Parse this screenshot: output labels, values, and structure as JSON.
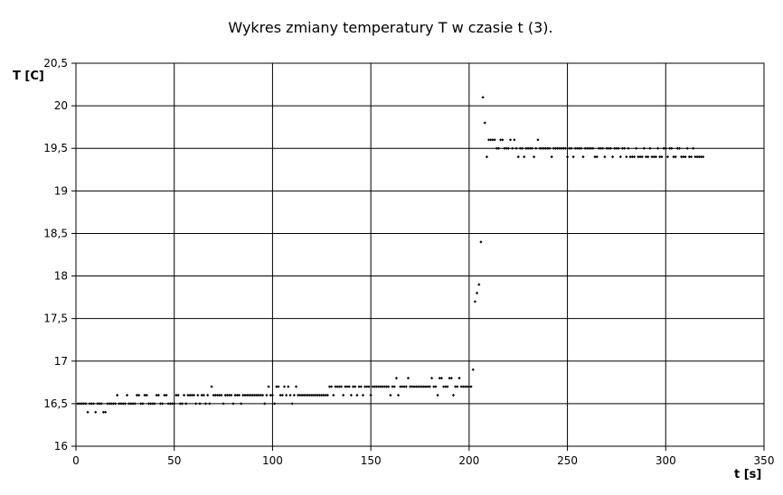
{
  "chart_data": {
    "type": "scatter",
    "title": "Wykres zmiany temperatury T w czasie t (3).",
    "xlabel": "t [s]",
    "ylabel": "T [C]",
    "xlim": [
      0,
      350
    ],
    "ylim": [
      16,
      20.5
    ],
    "x_ticks": [
      0,
      50,
      100,
      150,
      200,
      250,
      300,
      350
    ],
    "x_tick_labels": [
      "0",
      "50",
      "100",
      "150",
      "200",
      "250",
      "300",
      "350"
    ],
    "y_ticks": [
      16,
      16.5,
      17,
      17.5,
      18,
      18.5,
      19,
      19.5,
      20,
      20.5
    ],
    "y_tick_labels": [
      "16",
      "16,5",
      "17",
      "17,5",
      "18",
      "18,5",
      "19",
      "19,5",
      "20",
      "20,5"
    ],
    "grid": true,
    "series": [
      {
        "points": [
          [
            1,
            16.5
          ],
          [
            2,
            16.5
          ],
          [
            3,
            16.5
          ],
          [
            4,
            16.5
          ],
          [
            5,
            16.5
          ],
          [
            6,
            16.4
          ],
          [
            7,
            16.5
          ],
          [
            8,
            16.5
          ],
          [
            9,
            16.5
          ],
          [
            10,
            16.4
          ],
          [
            11,
            16.5
          ],
          [
            12,
            16.5
          ],
          [
            13,
            16.5
          ],
          [
            14,
            16.4
          ],
          [
            15,
            16.4
          ],
          [
            16,
            16.5
          ],
          [
            17,
            16.5
          ],
          [
            18,
            16.5
          ],
          [
            19,
            16.5
          ],
          [
            20,
            16.5
          ],
          [
            21,
            16.6
          ],
          [
            22,
            16.5
          ],
          [
            23,
            16.5
          ],
          [
            24,
            16.5
          ],
          [
            25,
            16.5
          ],
          [
            26,
            16.6
          ],
          [
            27,
            16.5
          ],
          [
            28,
            16.5
          ],
          [
            29,
            16.5
          ],
          [
            30,
            16.5
          ],
          [
            31,
            16.6
          ],
          [
            32,
            16.6
          ],
          [
            33,
            16.5
          ],
          [
            34,
            16.5
          ],
          [
            35,
            16.6
          ],
          [
            36,
            16.6
          ],
          [
            37,
            16.5
          ],
          [
            38,
            16.5
          ],
          [
            39,
            16.5
          ],
          [
            40,
            16.5
          ],
          [
            41,
            16.6
          ],
          [
            42,
            16.6
          ],
          [
            43,
            16.5
          ],
          [
            44,
            16.5
          ],
          [
            45,
            16.6
          ],
          [
            46,
            16.6
          ],
          [
            47,
            16.5
          ],
          [
            48,
            16.5
          ],
          [
            49,
            16.5
          ],
          [
            50,
            16.5
          ],
          [
            51,
            16.6
          ],
          [
            52,
            16.6
          ],
          [
            53,
            16.5
          ],
          [
            54,
            16.5
          ],
          [
            55,
            16.6
          ],
          [
            56,
            16.5
          ],
          [
            57,
            16.6
          ],
          [
            58,
            16.6
          ],
          [
            59,
            16.6
          ],
          [
            60,
            16.6
          ],
          [
            61,
            16.5
          ],
          [
            62,
            16.6
          ],
          [
            63,
            16.5
          ],
          [
            64,
            16.6
          ],
          [
            65,
            16.6
          ],
          [
            66,
            16.5
          ],
          [
            67,
            16.6
          ],
          [
            68,
            16.5
          ],
          [
            69,
            16.7
          ],
          [
            70,
            16.6
          ],
          [
            71,
            16.6
          ],
          [
            72,
            16.6
          ],
          [
            73,
            16.6
          ],
          [
            74,
            16.6
          ],
          [
            75,
            16.5
          ],
          [
            76,
            16.6
          ],
          [
            77,
            16.6
          ],
          [
            78,
            16.6
          ],
          [
            79,
            16.6
          ],
          [
            80,
            16.5
          ],
          [
            81,
            16.6
          ],
          [
            82,
            16.6
          ],
          [
            83,
            16.6
          ],
          [
            84,
            16.5
          ],
          [
            85,
            16.6
          ],
          [
            86,
            16.6
          ],
          [
            87,
            16.6
          ],
          [
            88,
            16.6
          ],
          [
            89,
            16.6
          ],
          [
            90,
            16.6
          ],
          [
            91,
            16.6
          ],
          [
            92,
            16.6
          ],
          [
            93,
            16.6
          ],
          [
            94,
            16.6
          ],
          [
            95,
            16.6
          ],
          [
            96,
            16.5
          ],
          [
            97,
            16.6
          ],
          [
            98,
            16.7
          ],
          [
            99,
            16.6
          ],
          [
            100,
            16.6
          ],
          [
            101,
            16.5
          ],
          [
            102,
            16.7
          ],
          [
            103,
            16.7
          ],
          [
            104,
            16.6
          ],
          [
            105,
            16.6
          ],
          [
            106,
            16.7
          ],
          [
            107,
            16.6
          ],
          [
            108,
            16.7
          ],
          [
            109,
            16.6
          ],
          [
            110,
            16.5
          ],
          [
            111,
            16.6
          ],
          [
            112,
            16.7
          ],
          [
            113,
            16.6
          ],
          [
            114,
            16.6
          ],
          [
            115,
            16.6
          ],
          [
            116,
            16.6
          ],
          [
            117,
            16.6
          ],
          [
            118,
            16.6
          ],
          [
            119,
            16.6
          ],
          [
            120,
            16.6
          ],
          [
            121,
            16.6
          ],
          [
            122,
            16.6
          ],
          [
            123,
            16.6
          ],
          [
            124,
            16.6
          ],
          [
            125,
            16.6
          ],
          [
            126,
            16.6
          ],
          [
            127,
            16.6
          ],
          [
            128,
            16.6
          ],
          [
            129,
            16.7
          ],
          [
            130,
            16.7
          ],
          [
            131,
            16.6
          ],
          [
            132,
            16.7
          ],
          [
            133,
            16.7
          ],
          [
            134,
            16.7
          ],
          [
            135,
            16.7
          ],
          [
            136,
            16.6
          ],
          [
            137,
            16.7
          ],
          [
            138,
            16.7
          ],
          [
            139,
            16.7
          ],
          [
            140,
            16.6
          ],
          [
            141,
            16.7
          ],
          [
            142,
            16.7
          ],
          [
            143,
            16.6
          ],
          [
            144,
            16.7
          ],
          [
            145,
            16.7
          ],
          [
            146,
            16.6
          ],
          [
            147,
            16.7
          ],
          [
            148,
            16.7
          ],
          [
            149,
            16.7
          ],
          [
            150,
            16.6
          ],
          [
            151,
            16.7
          ],
          [
            152,
            16.7
          ],
          [
            153,
            16.7
          ],
          [
            154,
            16.7
          ],
          [
            155,
            16.7
          ],
          [
            156,
            16.7
          ],
          [
            157,
            16.7
          ],
          [
            158,
            16.7
          ],
          [
            159,
            16.7
          ],
          [
            160,
            16.6
          ],
          [
            161,
            16.7
          ],
          [
            162,
            16.7
          ],
          [
            163,
            16.8
          ],
          [
            164,
            16.6
          ],
          [
            165,
            16.7
          ],
          [
            166,
            16.7
          ],
          [
            167,
            16.7
          ],
          [
            168,
            16.7
          ],
          [
            169,
            16.8
          ],
          [
            170,
            16.7
          ],
          [
            171,
            16.7
          ],
          [
            172,
            16.7
          ],
          [
            173,
            16.7
          ],
          [
            174,
            16.7
          ],
          [
            175,
            16.7
          ],
          [
            176,
            16.7
          ],
          [
            177,
            16.7
          ],
          [
            178,
            16.7
          ],
          [
            179,
            16.7
          ],
          [
            180,
            16.7
          ],
          [
            181,
            16.8
          ],
          [
            182,
            16.7
          ],
          [
            183,
            16.7
          ],
          [
            184,
            16.6
          ],
          [
            185,
            16.8
          ],
          [
            186,
            16.8
          ],
          [
            187,
            16.7
          ],
          [
            188,
            16.7
          ],
          [
            189,
            16.7
          ],
          [
            190,
            16.8
          ],
          [
            191,
            16.8
          ],
          [
            192,
            16.6
          ],
          [
            193,
            16.7
          ],
          [
            194,
            16.7
          ],
          [
            195,
            16.8
          ],
          [
            196,
            16.7
          ],
          [
            197,
            16.7
          ],
          [
            198,
            16.7
          ],
          [
            199,
            16.7
          ],
          [
            200,
            16.7
          ],
          [
            201,
            16.7
          ],
          [
            202,
            16.9
          ],
          [
            203,
            17.7
          ],
          [
            204,
            17.8
          ],
          [
            205,
            17.9
          ],
          [
            206,
            18.4
          ],
          [
            207,
            20.1
          ],
          [
            208,
            19.8
          ],
          [
            209,
            19.4
          ],
          [
            210,
            19.6
          ],
          [
            211,
            19.6
          ],
          [
            212,
            19.6
          ],
          [
            213,
            19.6
          ],
          [
            214,
            19.5
          ],
          [
            215,
            19.5
          ],
          [
            216,
            19.6
          ],
          [
            217,
            19.6
          ],
          [
            218,
            19.5
          ],
          [
            219,
            19.5
          ],
          [
            220,
            19.5
          ],
          [
            221,
            19.6
          ],
          [
            222,
            19.5
          ],
          [
            223,
            19.6
          ],
          [
            224,
            19.5
          ],
          [
            225,
            19.4
          ],
          [
            226,
            19.5
          ],
          [
            227,
            19.5
          ],
          [
            228,
            19.4
          ],
          [
            229,
            19.5
          ],
          [
            230,
            19.5
          ],
          [
            231,
            19.5
          ],
          [
            232,
            19.5
          ],
          [
            233,
            19.4
          ],
          [
            234,
            19.5
          ],
          [
            235,
            19.6
          ],
          [
            236,
            19.5
          ],
          [
            237,
            19.5
          ],
          [
            238,
            19.5
          ],
          [
            239,
            19.5
          ],
          [
            240,
            19.5
          ],
          [
            241,
            19.5
          ],
          [
            242,
            19.4
          ],
          [
            243,
            19.5
          ],
          [
            244,
            19.5
          ],
          [
            245,
            19.5
          ],
          [
            246,
            19.5
          ],
          [
            247,
            19.5
          ],
          [
            248,
            19.5
          ],
          [
            249,
            19.5
          ],
          [
            250,
            19.4
          ],
          [
            251,
            19.5
          ],
          [
            252,
            19.5
          ],
          [
            253,
            19.4
          ],
          [
            254,
            19.5
          ],
          [
            255,
            19.5
          ],
          [
            256,
            19.5
          ],
          [
            257,
            19.5
          ],
          [
            258,
            19.4
          ],
          [
            259,
            19.5
          ],
          [
            260,
            19.5
          ],
          [
            261,
            19.5
          ],
          [
            262,
            19.5
          ],
          [
            263,
            19.5
          ],
          [
            264,
            19.4
          ],
          [
            265,
            19.4
          ],
          [
            266,
            19.5
          ],
          [
            267,
            19.5
          ],
          [
            268,
            19.5
          ],
          [
            269,
            19.4
          ],
          [
            270,
            19.5
          ],
          [
            271,
            19.5
          ],
          [
            272,
            19.5
          ],
          [
            273,
            19.4
          ],
          [
            274,
            19.5
          ],
          [
            275,
            19.5
          ],
          [
            276,
            19.5
          ],
          [
            277,
            19.4
          ],
          [
            278,
            19.5
          ],
          [
            279,
            19.5
          ],
          [
            280,
            19.4
          ],
          [
            281,
            19.5
          ],
          [
            282,
            19.4
          ],
          [
            283,
            19.4
          ],
          [
            284,
            19.4
          ],
          [
            285,
            19.5
          ],
          [
            286,
            19.4
          ],
          [
            287,
            19.4
          ],
          [
            288,
            19.4
          ],
          [
            289,
            19.5
          ],
          [
            290,
            19.4
          ],
          [
            291,
            19.4
          ],
          [
            292,
            19.5
          ],
          [
            293,
            19.4
          ],
          [
            294,
            19.4
          ],
          [
            295,
            19.4
          ],
          [
            296,
            19.5
          ],
          [
            297,
            19.4
          ],
          [
            298,
            19.4
          ],
          [
            299,
            19.5
          ],
          [
            300,
            19.5
          ],
          [
            301,
            19.4
          ],
          [
            302,
            19.5
          ],
          [
            303,
            19.5
          ],
          [
            304,
            19.4
          ],
          [
            305,
            19.4
          ],
          [
            306,
            19.5
          ],
          [
            307,
            19.5
          ],
          [
            308,
            19.4
          ],
          [
            309,
            19.4
          ],
          [
            310,
            19.4
          ],
          [
            311,
            19.5
          ],
          [
            312,
            19.4
          ],
          [
            313,
            19.4
          ],
          [
            314,
            19.5
          ],
          [
            315,
            19.4
          ],
          [
            316,
            19.4
          ],
          [
            317,
            19.4
          ],
          [
            318,
            19.4
          ],
          [
            319,
            19.4
          ]
        ]
      }
    ]
  }
}
